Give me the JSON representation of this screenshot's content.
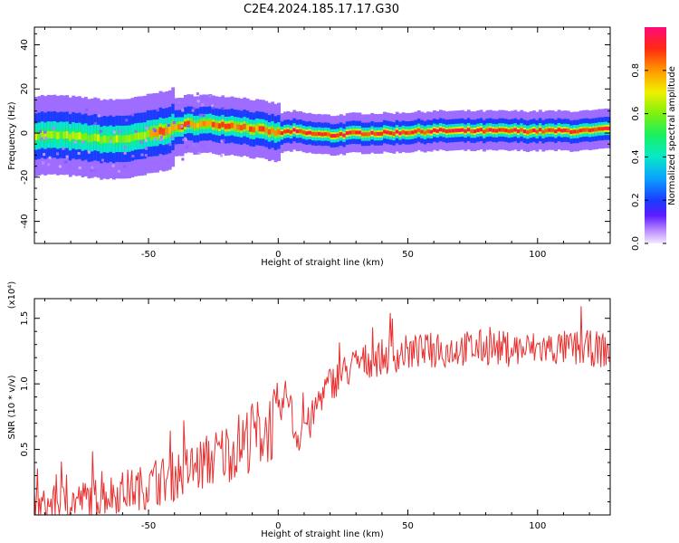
{
  "page_title": "C2E4.2024.185.17.17.G30",
  "chart_data": [
    {
      "type": "heatmap",
      "title": "C2E4.2024.185.17.17.G30",
      "xlabel": "Height of straight line (km)",
      "ylabel": "Frequency (Hz)",
      "xlim": [
        -94,
        128
      ],
      "ylim": [
        -50,
        48
      ],
      "xticks": [
        -50,
        0,
        50,
        100
      ],
      "xtick_labels": [
        "-50",
        "0",
        "50",
        "100"
      ],
      "yticks": [
        -40,
        -20,
        0,
        20,
        40
      ],
      "ytick_labels": [
        "-40",
        "-20",
        "0",
        "20",
        "40"
      ],
      "grid": false,
      "ridge": {
        "x": [
          -94,
          -85,
          -75,
          -65,
          -55,
          -45,
          -35,
          -25,
          -15,
          -5,
          0,
          5,
          10,
          20,
          30,
          40,
          60,
          80,
          100,
          120,
          128
        ],
        "y": [
          -1,
          -1,
          -2,
          -3,
          -2,
          1,
          4,
          4,
          3,
          1,
          0,
          1,
          0,
          -1,
          0,
          0,
          1,
          1,
          1,
          1,
          2
        ]
      },
      "colorbar": {
        "label": "Normalized spectral amplitude",
        "range": [
          0,
          1
        ],
        "ticks": [
          0.0,
          0.2,
          0.4,
          0.6,
          0.8
        ],
        "tick_labels": [
          "0.0",
          "0.2",
          "0.4",
          "0.6",
          "0.8"
        ]
      }
    },
    {
      "type": "line",
      "xlabel": "Height of straight line (km)",
      "ylabel": "SNR (10 * v/v)",
      "y_multiplier": "(x10⁴)",
      "xlim": [
        -94,
        128
      ],
      "ylim": [
        0,
        1.65
      ],
      "xticks": [
        -50,
        0,
        50,
        100
      ],
      "xtick_labels": [
        "-50",
        "0",
        "50",
        "100"
      ],
      "yticks": [
        0.5,
        1.0,
        1.5
      ],
      "ytick_labels": [
        "0.5",
        "1.0",
        "1.5"
      ],
      "grid": false,
      "color": "#e83030",
      "x": [
        -94,
        -90,
        -85,
        -80,
        -75,
        -70,
        -65,
        -60,
        -55,
        -50,
        -45,
        -40,
        -35,
        -30,
        -25,
        -20,
        -15,
        -10,
        -5,
        0,
        2,
        4,
        6,
        8,
        10,
        12,
        14,
        16,
        20,
        25,
        30,
        35,
        40,
        45,
        50,
        55,
        60,
        65,
        70,
        75,
        80,
        85,
        90,
        95,
        100,
        105,
        110,
        115,
        120,
        125,
        128
      ],
      "y": [
        0.05,
        0.07,
        0.09,
        0.1,
        0.12,
        0.14,
        0.16,
        0.18,
        0.2,
        0.22,
        0.26,
        0.3,
        0.34,
        0.38,
        0.43,
        0.48,
        0.54,
        0.6,
        0.65,
        0.72,
        0.85,
        0.95,
        0.65,
        0.6,
        0.72,
        0.68,
        0.78,
        0.9,
        1.0,
        1.08,
        1.15,
        1.18,
        1.2,
        1.22,
        1.24,
        1.24,
        1.25,
        1.26,
        1.27,
        1.27,
        1.28,
        1.27,
        1.27,
        1.26,
        1.27,
        1.27,
        1.27,
        1.27,
        1.27,
        1.26,
        1.26
      ]
    }
  ]
}
